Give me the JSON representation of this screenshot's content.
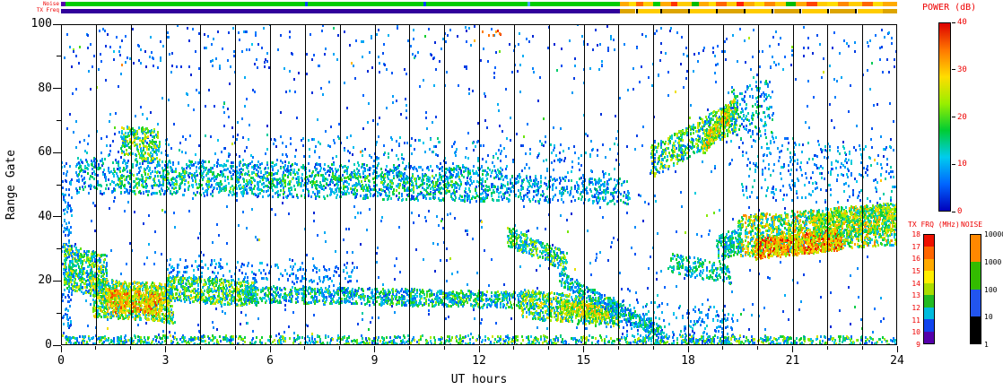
{
  "strips": {
    "noise_label": "Noise",
    "txfreq_label": "TX Freq",
    "noise_segments": [
      [
        0,
        0.12,
        "#5500aa"
      ],
      [
        0.12,
        7.0,
        "#00cc00"
      ],
      [
        7.0,
        7.07,
        "#0044ff"
      ],
      [
        7.07,
        10.4,
        "#00cc00"
      ],
      [
        10.4,
        10.47,
        "#0044ff"
      ],
      [
        10.47,
        13.4,
        "#00cc00"
      ],
      [
        13.4,
        13.47,
        "#44aaff"
      ],
      [
        13.47,
        16.05,
        "#00cc00"
      ],
      [
        16.05,
        16.3,
        "#ffaa00"
      ],
      [
        16.3,
        16.5,
        "#ffdd00"
      ],
      [
        16.5,
        16.7,
        "#ff6600"
      ],
      [
        16.7,
        17.0,
        "#ffcc00"
      ],
      [
        17.0,
        17.2,
        "#00cc00"
      ],
      [
        17.2,
        17.5,
        "#ffaa00"
      ],
      [
        17.5,
        17.7,
        "#ff3300"
      ],
      [
        17.7,
        18.1,
        "#ffcc00"
      ],
      [
        18.1,
        18.3,
        "#00bb00"
      ],
      [
        18.3,
        18.6,
        "#ffaa00"
      ],
      [
        18.6,
        18.8,
        "#ffdd00"
      ],
      [
        18.8,
        19.1,
        "#ff6600"
      ],
      [
        19.1,
        19.4,
        "#ffcc00"
      ],
      [
        19.4,
        19.6,
        "#ff2200"
      ],
      [
        19.6,
        19.9,
        "#ffaa00"
      ],
      [
        19.9,
        20.2,
        "#ffdd00"
      ],
      [
        20.2,
        20.5,
        "#ff8800"
      ],
      [
        20.5,
        20.8,
        "#ffcc00"
      ],
      [
        20.8,
        21.1,
        "#00bb00"
      ],
      [
        21.1,
        21.4,
        "#ffaa00"
      ],
      [
        21.4,
        21.7,
        "#ff4400"
      ],
      [
        21.7,
        22.0,
        "#ffcc00"
      ],
      [
        22.0,
        22.3,
        "#ffdd00"
      ],
      [
        22.3,
        22.6,
        "#ff8800"
      ],
      [
        22.6,
        23.0,
        "#ffcc00"
      ],
      [
        23.0,
        23.3,
        "#ff6600"
      ],
      [
        23.3,
        23.6,
        "#ffdd00"
      ],
      [
        23.6,
        24,
        "#ffaa00"
      ]
    ],
    "txfreq_segments": [
      [
        0,
        16.05,
        "#31009b"
      ],
      [
        16.05,
        16.5,
        "#dda500"
      ],
      [
        16.5,
        16.56,
        "#000000"
      ],
      [
        16.56,
        17.2,
        "#ffcc00"
      ],
      [
        17.2,
        17.26,
        "#000000"
      ],
      [
        17.26,
        18.0,
        "#dda500"
      ],
      [
        18.0,
        18.06,
        "#000000"
      ],
      [
        18.06,
        18.8,
        "#ffcc00"
      ],
      [
        18.8,
        18.86,
        "#000000"
      ],
      [
        18.86,
        19.6,
        "#dda500"
      ],
      [
        19.6,
        19.66,
        "#000000"
      ],
      [
        19.66,
        20.4,
        "#ffcc00"
      ],
      [
        20.4,
        20.46,
        "#000000"
      ],
      [
        20.46,
        21.2,
        "#dda500"
      ],
      [
        21.2,
        21.26,
        "#000000"
      ],
      [
        21.26,
        22.0,
        "#ffcc00"
      ],
      [
        22.0,
        22.06,
        "#000000"
      ],
      [
        22.06,
        22.8,
        "#dda500"
      ],
      [
        22.8,
        22.86,
        "#000000"
      ],
      [
        22.86,
        23.6,
        "#ffcc00"
      ],
      [
        23.6,
        24,
        "#dda500"
      ]
    ]
  },
  "legends": {
    "power": {
      "title": "POWER (dB)",
      "ticks": [
        "40",
        "30",
        "20",
        "10",
        "0"
      ],
      "gradient_top_to_bottom": [
        "#dd0000",
        "#ff7700",
        "#ffdd00",
        "#99ee00",
        "#00cc33",
        "#00ccee",
        "#0066ff",
        "#0000bb"
      ]
    },
    "txfrq": {
      "title": "TX FRQ (MHz)",
      "ticks": [
        "18",
        "17",
        "16",
        "15",
        "14",
        "13",
        "12",
        "11",
        "10",
        "9"
      ],
      "segment_colors_top_to_bottom": [
        "#ee1100",
        "#ff6600",
        "#ffaa00",
        "#ffee00",
        "#aadd00",
        "#22bb22",
        "#00bbdd",
        "#1144ee",
        "#5500aa"
      ]
    },
    "noise": {
      "title": "NOISE",
      "ticks": [
        "10000",
        "1000",
        "100",
        "10",
        "1"
      ],
      "segment_colors_top_to_bottom": [
        "#ff8800",
        "#33bb00",
        "#2255ee",
        "#000000"
      ]
    }
  },
  "chart_data": {
    "type": "heatmap",
    "title": "",
    "xlabel": "UT hours",
    "ylabel": "Range Gate",
    "xlim": [
      0,
      24
    ],
    "ylim": [
      0,
      100
    ],
    "x_ticks": [
      0,
      3,
      6,
      9,
      12,
      15,
      18,
      21,
      24
    ],
    "y_ticks": [
      0,
      20,
      40,
      60,
      80,
      100
    ],
    "value_label": "POWER (dB)",
    "value_range_db": [
      0,
      40
    ],
    "vertical_gridline_every_hour": true,
    "clusters": [
      {
        "name": "background-sparse",
        "x0": 0,
        "x1": 24,
        "y0": 50,
        "y1": 50,
        "hw": 50,
        "n": 950,
        "p0": 2,
        "p1": 10
      },
      {
        "name": "background-outliers",
        "x0": 0,
        "x1": 24,
        "y0": 50,
        "y1": 50,
        "hw": 50,
        "n": 70,
        "p0": 10,
        "p1": 34
      },
      {
        "name": "ground-scatter-band",
        "x0": 0,
        "x1": 24,
        "y0": 1.2,
        "y1": 1.2,
        "hw": 1.8,
        "n": 1500,
        "p0": 4,
        "p1": 26
      },
      {
        "name": "left-edge-column",
        "x0": 0,
        "x1": 0.3,
        "y0": 30,
        "y1": 30,
        "hw": 28,
        "n": 130,
        "p0": 3,
        "p1": 12
      },
      {
        "name": "low-band-00-01",
        "x0": 0.05,
        "x1": 1.3,
        "y0": 25,
        "y1": 21,
        "hw": 7,
        "n": 520,
        "p0": 5,
        "p1": 30
      },
      {
        "name": "low-band-01-03",
        "x0": 0.9,
        "x1": 3.2,
        "y0": 15,
        "y1": 13,
        "hw": 6,
        "n": 900,
        "p0": 8,
        "p1": 32
      },
      {
        "name": "low-band-01-03-core",
        "x0": 1.3,
        "x1": 2.9,
        "y0": 14,
        "y1": 13,
        "hw": 3.5,
        "n": 430,
        "p0": 20,
        "p1": 38
      },
      {
        "name": "low-band-03-05",
        "x0": 3.0,
        "x1": 5.6,
        "y0": 18,
        "y1": 16,
        "hw": 4,
        "n": 560,
        "p0": 6,
        "p1": 28
      },
      {
        "name": "low-band-05-10",
        "x0": 5.2,
        "x1": 10.2,
        "y0": 16,
        "y1": 15,
        "hw": 2.6,
        "n": 640,
        "p0": 4,
        "p1": 22
      },
      {
        "name": "low-band-10-13",
        "x0": 10.0,
        "x1": 13.6,
        "y0": 15,
        "y1": 14,
        "hw": 2.6,
        "n": 520,
        "p0": 5,
        "p1": 24
      },
      {
        "name": "low-band-13-16",
        "x0": 13.2,
        "x1": 16.0,
        "y0": 13,
        "y1": 10,
        "hw": 4.5,
        "n": 600,
        "p0": 6,
        "p1": 30
      },
      {
        "name": "low-band-14-15-core",
        "x0": 14.3,
        "x1": 15.7,
        "y0": 12,
        "y1": 10,
        "hw": 2.2,
        "n": 260,
        "p0": 16,
        "p1": 32
      },
      {
        "name": "descending-band-14-17",
        "x0": 14.3,
        "x1": 17.2,
        "y0": 21,
        "y1": 4,
        "hw": 2.2,
        "n": 380,
        "p0": 4,
        "p1": 20
      },
      {
        "name": "descending-band-13-14",
        "x0": 12.8,
        "x1": 14.5,
        "y0": 34,
        "y1": 26,
        "hw": 3,
        "n": 270,
        "p0": 6,
        "p1": 26
      },
      {
        "name": "low-upper-sparse",
        "x0": 3,
        "x1": 8.5,
        "y0": 24,
        "y1": 22,
        "hw": 3,
        "n": 190,
        "p0": 3,
        "p1": 12
      },
      {
        "name": "mid-band-50",
        "x0": 0.4,
        "x1": 12.6,
        "y0": 53,
        "y1": 50,
        "hw": 5.5,
        "n": 1500,
        "p0": 3,
        "p1": 18
      },
      {
        "name": "mid-band-50-bright",
        "x0": 1.5,
        "x1": 11.5,
        "y0": 52,
        "y1": 50,
        "hw": 3,
        "n": 420,
        "p0": 8,
        "p1": 24
      },
      {
        "name": "mid-band-13-16",
        "x0": 12.6,
        "x1": 16.3,
        "y0": 49,
        "y1": 48,
        "hw": 4,
        "n": 380,
        "p0": 3,
        "p1": 16
      },
      {
        "name": "mid-upper-sparse",
        "x0": 0.5,
        "x1": 16,
        "y0": 61,
        "y1": 58,
        "hw": 6,
        "n": 360,
        "p0": 3,
        "p1": 14
      },
      {
        "name": "blob-02h-gate63",
        "x0": 1.7,
        "x1": 2.8,
        "y0": 64,
        "y1": 62,
        "hw": 5,
        "n": 230,
        "p0": 8,
        "p1": 30
      },
      {
        "name": "rising-band-17-19",
        "x0": 16.9,
        "x1": 19.4,
        "y0": 57,
        "y1": 72,
        "hw": 5,
        "n": 560,
        "p0": 5,
        "p1": 28
      },
      {
        "name": "rising-band-hot",
        "x0": 18.4,
        "x1": 19.35,
        "y0": 62,
        "y1": 75,
        "hw": 3,
        "n": 230,
        "p0": 16,
        "p1": 34
      },
      {
        "name": "upper-right-sparse",
        "x0": 19.5,
        "x1": 24,
        "y0": 56,
        "y1": 52,
        "hw": 10,
        "n": 300,
        "p0": 3,
        "p1": 14
      },
      {
        "name": "spike-19-20-high",
        "x0": 19.2,
        "x1": 20.4,
        "y0": 72,
        "y1": 74,
        "hw": 9,
        "n": 160,
        "p0": 4,
        "p1": 18
      },
      {
        "name": "evening-main-band",
        "x0": 19.4,
        "x1": 24,
        "y0": 34,
        "y1": 38,
        "hw": 6.5,
        "n": 1600,
        "p0": 8,
        "p1": 34
      },
      {
        "name": "evening-hot-core",
        "x0": 19.9,
        "x1": 22.4,
        "y0": 30,
        "y1": 33,
        "hw": 3.2,
        "n": 700,
        "p0": 22,
        "p1": 40
      },
      {
        "name": "evening-right",
        "x0": 21.5,
        "x1": 24,
        "y0": 37,
        "y1": 40,
        "hw": 4,
        "n": 520,
        "p0": 12,
        "p1": 32
      },
      {
        "name": "pre-evening",
        "x0": 18.8,
        "x1": 19.5,
        "y0": 30,
        "y1": 33,
        "hw": 4,
        "n": 160,
        "p0": 5,
        "p1": 20
      },
      {
        "name": "low-right-sparse",
        "x0": 16,
        "x1": 19.3,
        "y0": 8,
        "y1": 6,
        "hw": 6,
        "n": 210,
        "p0": 3,
        "p1": 14
      },
      {
        "name": "band-17-19-gate24",
        "x0": 17.4,
        "x1": 19.2,
        "y0": 26,
        "y1": 22,
        "hw": 3,
        "n": 190,
        "p0": 5,
        "p1": 20
      },
      {
        "name": "top-rows-sparse",
        "x0": 0,
        "x1": 24,
        "y0": 92,
        "y1": 92,
        "hw": 7,
        "n": 220,
        "p0": 2,
        "p1": 10
      },
      {
        "name": "top-red-dots",
        "x0": 11.7,
        "x1": 12.6,
        "y0": 97,
        "y1": 97,
        "hw": 2,
        "n": 8,
        "p0": 30,
        "p1": 40
      }
    ]
  }
}
